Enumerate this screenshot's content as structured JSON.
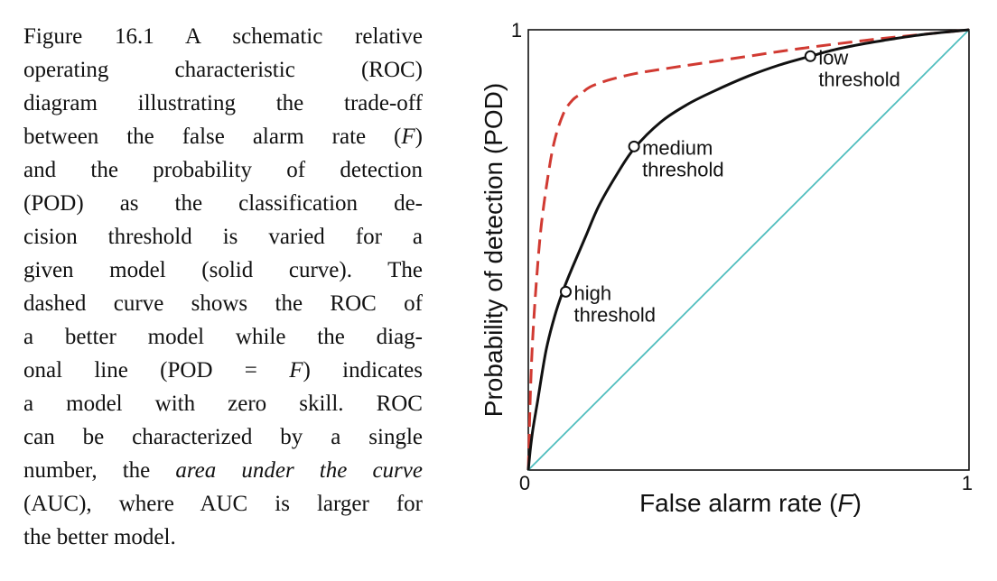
{
  "caption": {
    "lines": [
      {
        "parts": [
          {
            "text": "Figure 16.1 A schematic relative",
            "italic": false
          }
        ]
      },
      {
        "parts": [
          {
            "text": "operating characteristic (ROC)",
            "italic": false
          }
        ]
      },
      {
        "parts": [
          {
            "text": "diagram illustrating the trade-off",
            "italic": false
          }
        ]
      },
      {
        "parts": [
          {
            "text": "between the false alarm rate (",
            "italic": false
          },
          {
            "text": "F",
            "italic": true
          },
          {
            "text": ")",
            "italic": false
          }
        ]
      },
      {
        "parts": [
          {
            "text": "and the probability of detection",
            "italic": false
          }
        ]
      },
      {
        "parts": [
          {
            "text": "(POD) as the classification de-",
            "italic": false
          }
        ]
      },
      {
        "parts": [
          {
            "text": "cision threshold is varied for a",
            "italic": false
          }
        ]
      },
      {
        "parts": [
          {
            "text": "given model (solid curve). The",
            "italic": false
          }
        ]
      },
      {
        "parts": [
          {
            "text": "dashed curve shows the ROC of",
            "italic": false
          }
        ]
      },
      {
        "parts": [
          {
            "text": "a better model while the diag-",
            "italic": false
          }
        ]
      },
      {
        "parts": [
          {
            "text": "onal line (POD = ",
            "italic": false
          },
          {
            "text": "F",
            "italic": true
          },
          {
            "text": ") indicates",
            "italic": false
          }
        ]
      },
      {
        "parts": [
          {
            "text": "a model with zero skill. ROC",
            "italic": false
          }
        ]
      },
      {
        "parts": [
          {
            "text": "can be characterized by a single",
            "italic": false
          }
        ]
      },
      {
        "parts": [
          {
            "text": "number, the ",
            "italic": false
          },
          {
            "text": "area under the curve",
            "italic": true
          }
        ]
      },
      {
        "parts": [
          {
            "text": "(AUC), where AUC is larger for",
            "italic": false
          }
        ]
      },
      {
        "parts": [
          {
            "text": "the better model.",
            "italic": false
          }
        ]
      }
    ]
  },
  "chart_data": {
    "type": "line",
    "xlabel": "False alarm rate (F)",
    "xlabel_parts": [
      {
        "text": "False alarm rate (",
        "italic": false
      },
      {
        "text": "F",
        "italic": true
      },
      {
        "text": ")",
        "italic": false
      }
    ],
    "ylabel": "Probability of detection (POD)",
    "xlim": [
      0,
      1
    ],
    "ylim": [
      0,
      1
    ],
    "xticks": [
      "0",
      "1"
    ],
    "yticks": [
      "1"
    ],
    "grid": false,
    "series": [
      {
        "style": "solid",
        "color": "#111111",
        "x": [
          0,
          0.005,
          0.01,
          0.02,
          0.04,
          0.06,
          0.08,
          0.1,
          0.13,
          0.16,
          0.2,
          0.24,
          0.3,
          0.36,
          0.42,
          0.5,
          0.57,
          0.64,
          0.7,
          0.76,
          0.82,
          0.88,
          0.94,
          1
        ],
        "y": [
          0,
          0.05,
          0.09,
          0.15,
          0.27,
          0.35,
          0.41,
          0.46,
          0.53,
          0.6,
          0.67,
          0.73,
          0.79,
          0.83,
          0.86,
          0.895,
          0.92,
          0.94,
          0.956,
          0.968,
          0.978,
          0.987,
          0.994,
          1
        ]
      },
      {
        "style": "dashed",
        "color": "#d13a32",
        "x": [
          0,
          0.005,
          0.01,
          0.02,
          0.03,
          0.045,
          0.06,
          0.08,
          0.1,
          0.12,
          0.14,
          0.18,
          0.24,
          0.3,
          0.4,
          0.5,
          0.6,
          0.7,
          0.8,
          0.9,
          1
        ],
        "y": [
          0,
          0.18,
          0.3,
          0.45,
          0.56,
          0.67,
          0.75,
          0.81,
          0.84,
          0.855,
          0.87,
          0.885,
          0.9,
          0.91,
          0.925,
          0.94,
          0.955,
          0.968,
          0.98,
          0.99,
          1
        ]
      },
      {
        "style": "solid",
        "color": "#4fbdbe",
        "x": [
          0,
          1
        ],
        "y": [
          0,
          1
        ]
      }
    ],
    "points": [
      {
        "x": 0.085,
        "y": 0.405,
        "label_lines": [
          "high",
          "threshold"
        ]
      },
      {
        "x": 0.24,
        "y": 0.735,
        "label_lines": [
          "medium",
          "threshold"
        ]
      },
      {
        "x": 0.64,
        "y": 0.94,
        "label_lines": [
          "low",
          "threshold"
        ]
      }
    ],
    "colors": {
      "frame": "#111111",
      "dashed": "#d13a32",
      "diagonal": "#4fbdbe"
    }
  }
}
